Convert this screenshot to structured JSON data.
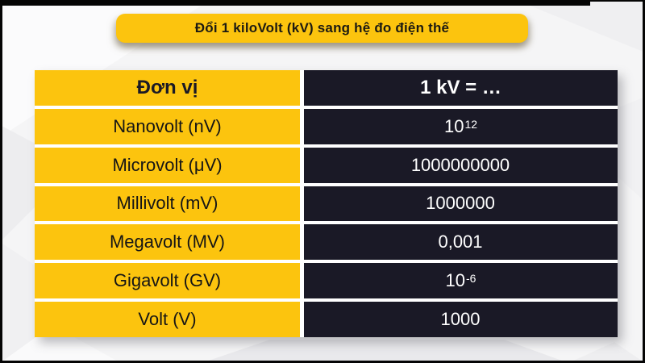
{
  "title": {
    "label": "Đổi 1 kiloVolt (kV) sang hệ đo điện thế"
  },
  "table": {
    "headers": [
      "Đơn vị",
      "1 kV = …"
    ],
    "rows": [
      {
        "unit": "Nanovolt (nV)",
        "value_base": "10",
        "value_sup": "12"
      },
      {
        "unit": "Microvolt (μV)",
        "value_base": "1000000000",
        "value_sup": ""
      },
      {
        "unit": "Millivolt (mV)",
        "value_base": "1000000",
        "value_sup": ""
      },
      {
        "unit": "Megavolt (MV)",
        "value_base": "0,001",
        "value_sup": ""
      },
      {
        "unit": "Gigavolt (GV)",
        "value_base": "10",
        "value_sup": "-6"
      },
      {
        "unit": "Volt (V)",
        "value_base": "1000",
        "value_sup": ""
      }
    ]
  },
  "chart_data": {
    "type": "table",
    "title": "Đổi 1 kiloVolt (kV) sang hệ đo điện thế",
    "columns": [
      "Đơn vị",
      "1 kV = …"
    ],
    "rows": [
      [
        "Nanovolt (nV)",
        "10^12"
      ],
      [
        "Microvolt (μV)",
        "1000000000"
      ],
      [
        "Millivolt (mV)",
        "1000000"
      ],
      [
        "Megavolt (MV)",
        "0,001"
      ],
      [
        "Gigavolt (GV)",
        "10^-6"
      ],
      [
        "Volt (V)",
        "1000"
      ]
    ]
  },
  "colors": {
    "yellow": "#FCC40E",
    "dark": "#1A1926",
    "frame": "#050505",
    "background": "#F5F5F6",
    "value_text": "#FFFFFF",
    "unit_text": "#151515"
  }
}
